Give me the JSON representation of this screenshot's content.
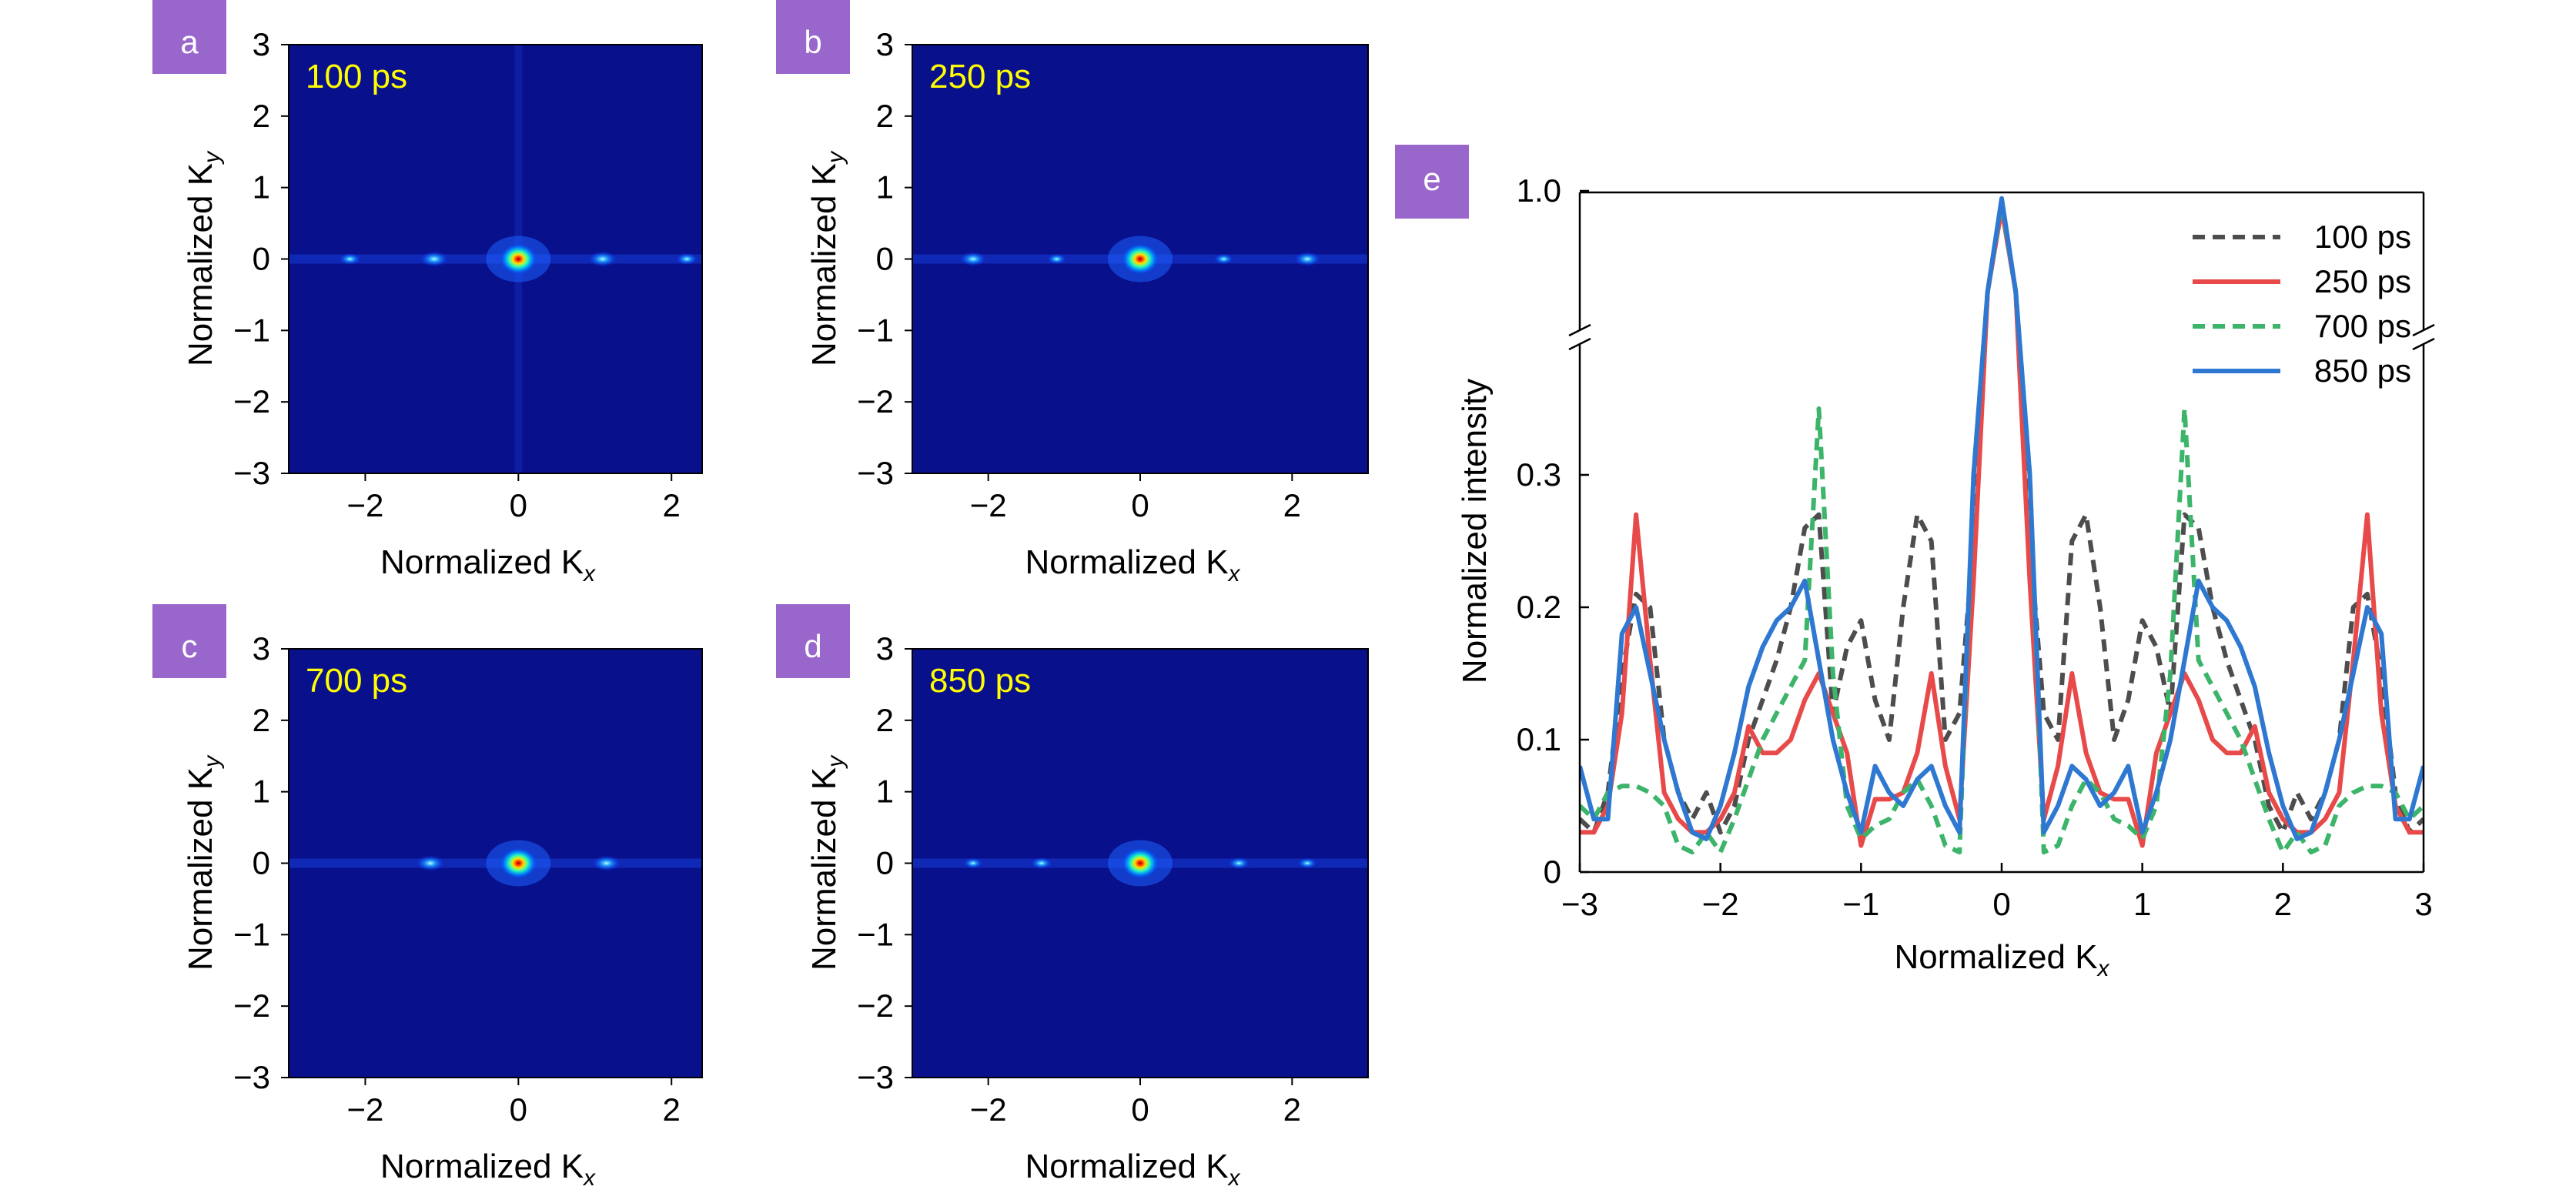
{
  "colors": {
    "badge": "#9966CC",
    "map_background": "#08108C",
    "time_label": "#FFFF00",
    "series_100": "#4D4D4D",
    "series_250": "#E84A4A",
    "series_700": "#3CB46A",
    "series_850": "#2E78D2"
  },
  "chart_data": [
    {
      "panel": "a",
      "type": "heatmap",
      "time_label": "100 ps",
      "xlabel": "Normalized K",
      "xlabel_sub": "x",
      "ylabel": "Normalized K",
      "ylabel_sub": "y",
      "x_ticks": [
        "−2",
        "0",
        "2"
      ],
      "y_ticks": [
        "3",
        "2",
        "1",
        "0",
        "−1",
        "−2",
        "−3"
      ],
      "xlim": [
        -3,
        2.4
      ],
      "ylim": [
        -3,
        3
      ],
      "spots": [
        {
          "kx": 0,
          "ky": 0,
          "intensity": 1.0
        },
        {
          "kx": -1.1,
          "ky": 0,
          "intensity": 0.35
        },
        {
          "kx": 1.1,
          "ky": 0,
          "intensity": 0.35
        },
        {
          "kx": -2.2,
          "ky": 0,
          "intensity": 0.2
        },
        {
          "kx": 2.2,
          "ky": 0,
          "intensity": 0.2
        }
      ]
    },
    {
      "panel": "b",
      "type": "heatmap",
      "time_label": "250 ps",
      "xlabel": "Normalized K",
      "xlabel_sub": "x",
      "ylabel": "Normalized K",
      "ylabel_sub": "y",
      "x_ticks": [
        "−2",
        "0",
        "2"
      ],
      "y_ticks": [
        "3",
        "2",
        "1",
        "0",
        "−1",
        "−2",
        "−3"
      ],
      "xlim": [
        -3,
        3
      ],
      "ylim": [
        -3,
        3
      ],
      "spots": [
        {
          "kx": 0,
          "ky": 0,
          "intensity": 1.0
        },
        {
          "kx": -2.2,
          "ky": 0,
          "intensity": 0.3
        },
        {
          "kx": 2.2,
          "ky": 0,
          "intensity": 0.3
        },
        {
          "kx": -1.1,
          "ky": 0,
          "intensity": 0.15
        },
        {
          "kx": 1.1,
          "ky": 0,
          "intensity": 0.15
        }
      ]
    },
    {
      "panel": "c",
      "type": "heatmap",
      "time_label": "700 ps",
      "xlabel": "Normalized K",
      "xlabel_sub": "x",
      "ylabel": "Normalized K",
      "ylabel_sub": "y",
      "x_ticks": [
        "−2",
        "0",
        "2"
      ],
      "y_ticks": [
        "3",
        "2",
        "1",
        "0",
        "−1",
        "−2",
        "−3"
      ],
      "xlim": [
        -3,
        2.4
      ],
      "ylim": [
        -3,
        3
      ],
      "spots": [
        {
          "kx": 0,
          "ky": 0,
          "intensity": 1.0
        },
        {
          "kx": -1.15,
          "ky": 0,
          "intensity": 0.35
        },
        {
          "kx": 1.15,
          "ky": 0,
          "intensity": 0.35
        }
      ]
    },
    {
      "panel": "d",
      "type": "heatmap",
      "time_label": "850 ps",
      "xlabel": "Normalized K",
      "xlabel_sub": "x",
      "ylabel": "Normalized K",
      "ylabel_sub": "y",
      "x_ticks": [
        "−2",
        "0",
        "2"
      ],
      "y_ticks": [
        "3",
        "2",
        "1",
        "0",
        "−1",
        "−2",
        "−3"
      ],
      "xlim": [
        -3,
        3
      ],
      "ylim": [
        -3,
        3
      ],
      "spots": [
        {
          "kx": 0,
          "ky": 0,
          "intensity": 1.0
        },
        {
          "kx": -1.3,
          "ky": 0,
          "intensity": 0.2
        },
        {
          "kx": 1.3,
          "ky": 0,
          "intensity": 0.2
        },
        {
          "kx": -2.2,
          "ky": 0,
          "intensity": 0.15
        },
        {
          "kx": 2.2,
          "ky": 0,
          "intensity": 0.15
        }
      ]
    },
    {
      "panel": "e",
      "type": "line",
      "xlabel": "Normalized K",
      "xlabel_sub": "x",
      "ylabel": "Normalized intensity",
      "xlim": [
        -3,
        3
      ],
      "x_ticks": [
        "−3",
        "−2",
        "−1",
        "0",
        "1",
        "2",
        "3"
      ],
      "y_ticks": [
        "0",
        "0.1",
        "0.2",
        "0.3",
        "1.0"
      ],
      "y_break": "between 0.4 and 1.0",
      "legend_position": "top-right",
      "series": [
        {
          "name": "100 ps",
          "style": "dashed",
          "x": [
            -3,
            -2.9,
            -2.8,
            -2.7,
            -2.6,
            -2.5,
            -2.4,
            -2.3,
            -2.2,
            -2.1,
            -2.0,
            -1.9,
            -1.8,
            -1.7,
            -1.6,
            -1.5,
            -1.4,
            -1.3,
            -1.2,
            -1.1,
            -1.0,
            -0.9,
            -0.8,
            -0.7,
            -0.6,
            -0.5,
            -0.4,
            -0.3,
            -0.2,
            -0.1,
            0,
            0.1,
            0.2,
            0.3,
            0.4,
            0.5,
            0.6,
            0.7,
            0.8,
            0.9,
            1.0,
            1.1,
            1.2,
            1.3,
            1.4,
            1.5,
            1.6,
            1.7,
            1.8,
            1.9,
            2.0,
            2.1,
            2.2,
            2.3,
            2.4,
            2.5,
            2.6,
            2.7,
            2.8,
            2.9,
            3.0
          ],
          "y": [
            0.04,
            0.03,
            0.06,
            0.15,
            0.21,
            0.2,
            0.1,
            0.06,
            0.04,
            0.06,
            0.03,
            0.05,
            0.1,
            0.13,
            0.16,
            0.2,
            0.26,
            0.27,
            0.12,
            0.17,
            0.19,
            0.13,
            0.1,
            0.2,
            0.27,
            0.25,
            0.1,
            0.12,
            0.25,
            0.6,
            0.95,
            0.6,
            0.25,
            0.12,
            0.1,
            0.25,
            0.27,
            0.2,
            0.1,
            0.13,
            0.19,
            0.17,
            0.12,
            0.27,
            0.26,
            0.2,
            0.16,
            0.13,
            0.1,
            0.05,
            0.03,
            0.06,
            0.04,
            0.06,
            0.1,
            0.2,
            0.21,
            0.15,
            0.06,
            0.03,
            0.04
          ]
        },
        {
          "name": "250 ps",
          "style": "solid",
          "x": [
            -3,
            -2.9,
            -2.8,
            -2.7,
            -2.6,
            -2.5,
            -2.4,
            -2.3,
            -2.2,
            -2.1,
            -2.0,
            -1.9,
            -1.8,
            -1.7,
            -1.6,
            -1.5,
            -1.4,
            -1.3,
            -1.2,
            -1.1,
            -1.0,
            -0.9,
            -0.8,
            -0.7,
            -0.6,
            -0.5,
            -0.4,
            -0.3,
            -0.2,
            -0.1,
            0,
            0.1,
            0.2,
            0.3,
            0.4,
            0.5,
            0.6,
            0.7,
            0.8,
            0.9,
            1.0,
            1.1,
            1.2,
            1.3,
            1.4,
            1.5,
            1.6,
            1.7,
            1.8,
            1.9,
            2.0,
            2.1,
            2.2,
            2.3,
            2.4,
            2.5,
            2.6,
            2.7,
            2.8,
            2.9,
            3.0
          ],
          "y": [
            0.03,
            0.03,
            0.05,
            0.12,
            0.27,
            0.16,
            0.06,
            0.04,
            0.03,
            0.03,
            0.04,
            0.06,
            0.11,
            0.09,
            0.09,
            0.1,
            0.13,
            0.15,
            0.12,
            0.09,
            0.02,
            0.055,
            0.055,
            0.06,
            0.09,
            0.15,
            0.08,
            0.04,
            0.22,
            0.6,
            0.93,
            0.6,
            0.22,
            0.04,
            0.08,
            0.15,
            0.09,
            0.06,
            0.055,
            0.055,
            0.02,
            0.09,
            0.12,
            0.15,
            0.13,
            0.1,
            0.09,
            0.09,
            0.11,
            0.06,
            0.04,
            0.03,
            0.03,
            0.04,
            0.06,
            0.16,
            0.27,
            0.12,
            0.05,
            0.03,
            0.03
          ]
        },
        {
          "name": "700 ps",
          "style": "dashed",
          "x": [
            -3,
            -2.9,
            -2.8,
            -2.7,
            -2.6,
            -2.5,
            -2.4,
            -2.3,
            -2.2,
            -2.1,
            -2.0,
            -1.9,
            -1.8,
            -1.7,
            -1.6,
            -1.5,
            -1.4,
            -1.3,
            -1.2,
            -1.1,
            -1.0,
            -0.9,
            -0.8,
            -0.7,
            -0.6,
            -0.5,
            -0.4,
            -0.3,
            -0.2,
            -0.1,
            0,
            0.1,
            0.2,
            0.3,
            0.4,
            0.5,
            0.6,
            0.7,
            0.8,
            0.9,
            1.0,
            1.1,
            1.2,
            1.3,
            1.4,
            1.5,
            1.6,
            1.7,
            1.8,
            1.9,
            2.0,
            2.1,
            2.2,
            2.3,
            2.4,
            2.5,
            2.6,
            2.7,
            2.8,
            2.9,
            3.0
          ],
          "y": [
            0.05,
            0.04,
            0.06,
            0.065,
            0.065,
            0.06,
            0.05,
            0.02,
            0.015,
            0.03,
            0.015,
            0.04,
            0.07,
            0.1,
            0.12,
            0.14,
            0.16,
            0.35,
            0.15,
            0.05,
            0.025,
            0.035,
            0.04,
            0.06,
            0.07,
            0.05,
            0.02,
            0.015,
            0.3,
            0.6,
            0.95,
            0.6,
            0.3,
            0.015,
            0.02,
            0.05,
            0.07,
            0.06,
            0.04,
            0.035,
            0.025,
            0.05,
            0.15,
            0.35,
            0.16,
            0.14,
            0.12,
            0.1,
            0.07,
            0.04,
            0.015,
            0.03,
            0.015,
            0.02,
            0.05,
            0.06,
            0.065,
            0.065,
            0.06,
            0.04,
            0.05
          ]
        },
        {
          "name": "850 ps",
          "style": "solid",
          "x": [
            -3,
            -2.9,
            -2.8,
            -2.7,
            -2.6,
            -2.5,
            -2.4,
            -2.3,
            -2.2,
            -2.1,
            -2.0,
            -1.9,
            -1.8,
            -1.7,
            -1.6,
            -1.5,
            -1.4,
            -1.3,
            -1.2,
            -1.1,
            -1.0,
            -0.9,
            -0.8,
            -0.7,
            -0.6,
            -0.5,
            -0.4,
            -0.3,
            -0.2,
            -0.1,
            0,
            0.1,
            0.2,
            0.3,
            0.4,
            0.5,
            0.6,
            0.7,
            0.8,
            0.9,
            1.0,
            1.1,
            1.2,
            1.3,
            1.4,
            1.5,
            1.6,
            1.7,
            1.8,
            1.9,
            2.0,
            2.1,
            2.2,
            2.3,
            2.4,
            2.5,
            2.6,
            2.7,
            2.8,
            2.9,
            3.0
          ],
          "y": [
            0.08,
            0.04,
            0.04,
            0.18,
            0.2,
            0.15,
            0.1,
            0.06,
            0.03,
            0.025,
            0.05,
            0.09,
            0.14,
            0.17,
            0.19,
            0.2,
            0.22,
            0.16,
            0.1,
            0.06,
            0.03,
            0.08,
            0.06,
            0.05,
            0.07,
            0.08,
            0.05,
            0.03,
            0.3,
            0.6,
            0.97,
            0.6,
            0.3,
            0.03,
            0.05,
            0.08,
            0.07,
            0.05,
            0.06,
            0.08,
            0.03,
            0.06,
            0.1,
            0.16,
            0.22,
            0.2,
            0.19,
            0.17,
            0.14,
            0.09,
            0.05,
            0.025,
            0.03,
            0.06,
            0.1,
            0.15,
            0.2,
            0.18,
            0.04,
            0.04,
            0.08
          ]
        }
      ]
    }
  ]
}
